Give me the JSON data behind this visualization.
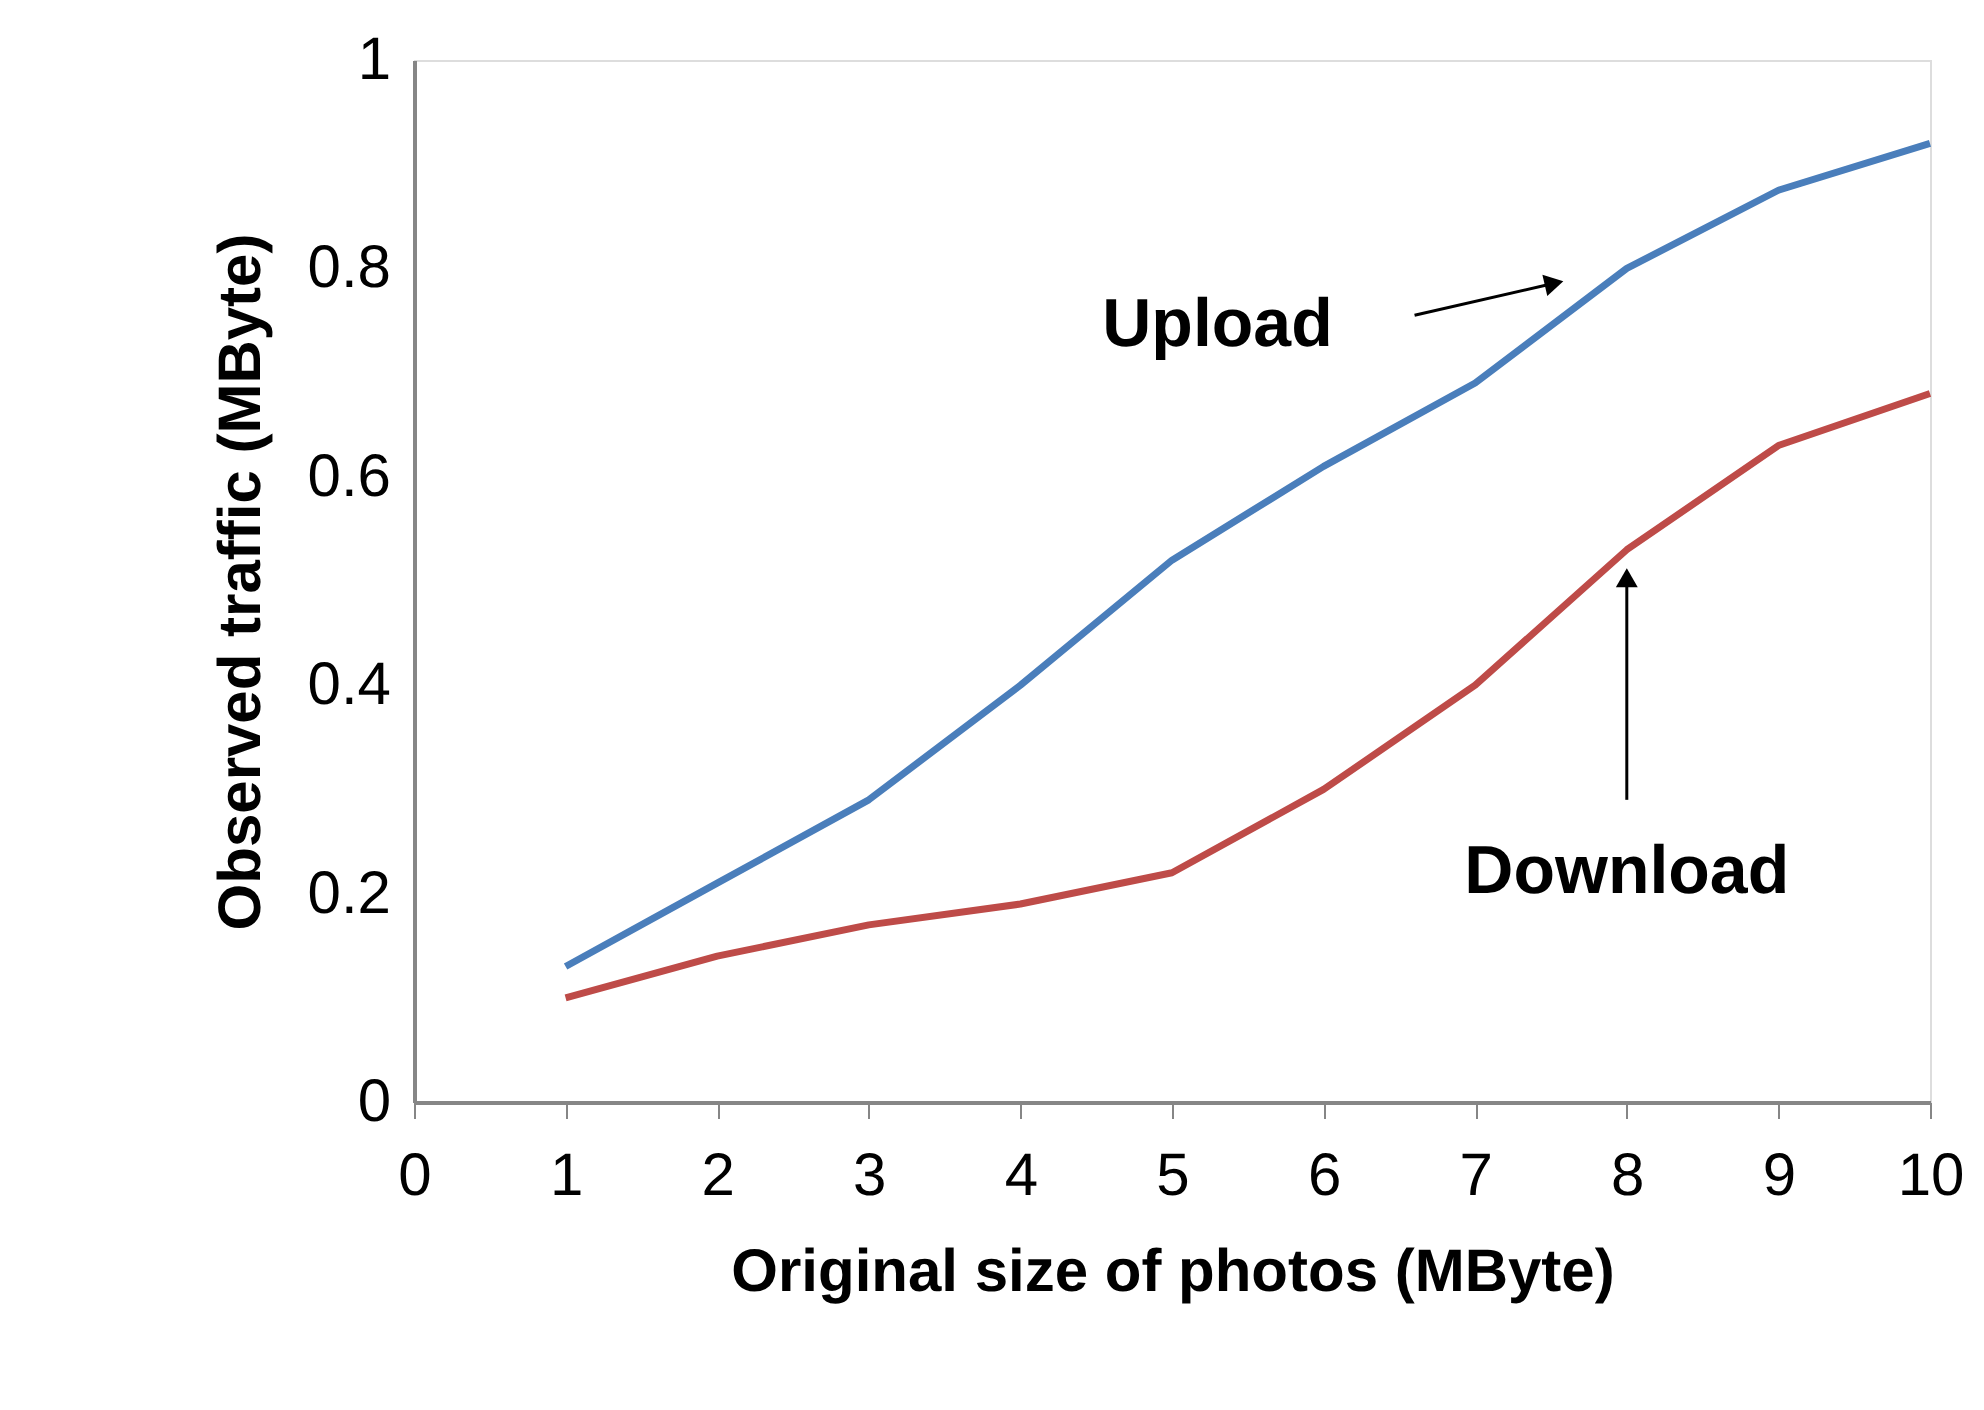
{
  "chart_data": {
    "type": "line",
    "xlabel": "Original size of photos (MByte)",
    "ylabel": "Observed traffic (MByte)",
    "x": [
      1,
      2,
      3,
      4,
      5,
      6,
      7,
      8,
      9,
      10
    ],
    "series": [
      {
        "name": "Upload",
        "color": "#4a7ebb",
        "values": [
          0.13,
          0.21,
          0.29,
          0.4,
          0.52,
          0.61,
          0.69,
          0.8,
          0.875,
          0.92
        ]
      },
      {
        "name": "Download",
        "color": "#be4b48",
        "values": [
          0.1,
          0.14,
          0.17,
          0.19,
          0.22,
          0.3,
          0.4,
          0.53,
          0.63,
          0.68
        ]
      }
    ],
    "xlim": [
      0,
      10
    ],
    "xticks": [
      0,
      1,
      2,
      3,
      4,
      5,
      6,
      7,
      8,
      9,
      10
    ],
    "ylim": [
      0,
      1
    ],
    "yticks": [
      0,
      0.2,
      0.4,
      0.6,
      0.8,
      1
    ],
    "grid": false,
    "legend": false,
    "marker": "none",
    "line_style": "solid"
  }
}
